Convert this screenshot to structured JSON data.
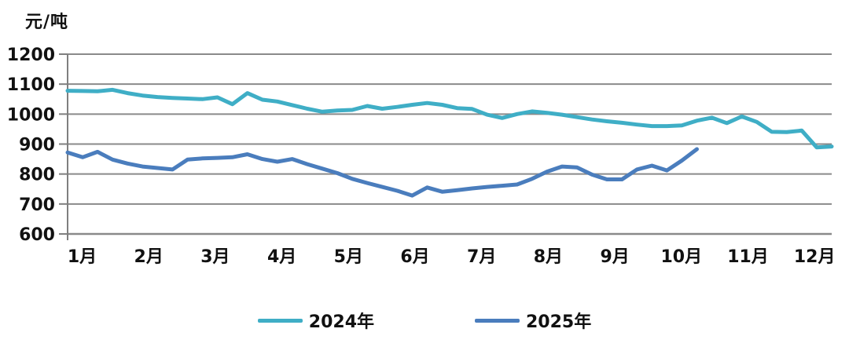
{
  "unit_label": "元/吨",
  "colors": {
    "series_2024": "#3FAEC6",
    "series_2025": "#4A7DBD",
    "gridline": "#8a8a8a",
    "axis": "#7f7f7f",
    "text": "#111111"
  },
  "legend": {
    "items": [
      {
        "label": "2024年",
        "color": "#3FAEC6"
      },
      {
        "label": "2025年",
        "color": "#4A7DBD"
      }
    ]
  },
  "chart_data": {
    "type": "line",
    "title": "",
    "ylabel": "元/吨",
    "xlabel": "",
    "ylim": [
      600,
      1200
    ],
    "yticks": [
      1200,
      1100,
      1000,
      900,
      800,
      700,
      600
    ],
    "x_categories": [
      "1月",
      "2月",
      "3月",
      "4月",
      "5月",
      "6月",
      "7月",
      "8月",
      "9月",
      "10月",
      "11月",
      "12月"
    ],
    "x_resolution": "weekly",
    "grid": true,
    "legend_position": "bottom",
    "series": [
      {
        "name": "2024年",
        "color": "#3FAEC6",
        "values": [
          1078,
          1077,
          1076,
          1081,
          1070,
          1062,
          1057,
          1054,
          1052,
          1050,
          1056,
          1033,
          1070,
          1048,
          1042,
          1030,
          1018,
          1008,
          1012,
          1014,
          1027,
          1018,
          1024,
          1031,
          1037,
          1031,
          1020,
          1017,
          998,
          987,
          1000,
          1009,
          1004,
          998,
          990,
          982,
          976,
          971,
          965,
          960,
          960,
          962,
          978,
          988,
          970,
          992,
          974,
          941,
          940,
          945,
          889,
          892
        ]
      },
      {
        "name": "2025年",
        "color": "#4A7DBD",
        "values": [
          872,
          856,
          874,
          848,
          835,
          825,
          820,
          815,
          848,
          852,
          854,
          856,
          866,
          850,
          841,
          850,
          833,
          818,
          803,
          784,
          770,
          757,
          744,
          728,
          755,
          741,
          746,
          752,
          757,
          761,
          765,
          784,
          808,
          825,
          822,
          798,
          782,
          782,
          815,
          828,
          812,
          845,
          883
        ]
      }
    ]
  }
}
